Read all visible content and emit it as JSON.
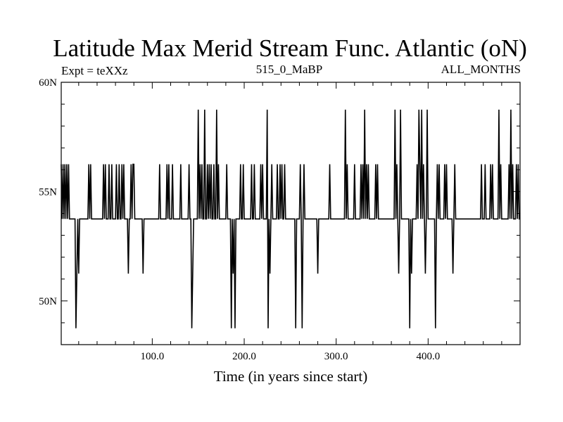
{
  "chart_data": {
    "type": "line",
    "title": "Latitude Max Merid Stream Func. Atlantic (oN)",
    "subtitle_left": "Expt = teXXz",
    "subtitle_center": "515_0_MaBP",
    "subtitle_right": "ALL_MONTHS",
    "xlabel": "Time (in years since start)",
    "ylabel": "",
    "xlim": [
      1,
      500
    ],
    "ylim": [
      48,
      60
    ],
    "x_ticks": [
      {
        "value": 100,
        "label": "100.0"
      },
      {
        "value": 200,
        "label": "200.0"
      },
      {
        "value": 300,
        "label": "300.0"
      },
      {
        "value": 400,
        "label": "400.0"
      }
    ],
    "y_ticks": [
      {
        "value": 50,
        "label": "50N"
      },
      {
        "value": 55,
        "label": "55N"
      },
      {
        "value": 60,
        "label": "60N"
      }
    ],
    "x_minor_step": 20,
    "y_minor_step": 1,
    "baseline": 53.75,
    "levels": {
      "high": 56.25,
      "top": 58.75,
      "low": 51.25,
      "bottom": 48.75
    },
    "events": [
      [
        1,
        56.25
      ],
      [
        2,
        53.75
      ],
      [
        3,
        56.25
      ],
      [
        4,
        53.75
      ],
      [
        5,
        56.25
      ],
      [
        6,
        53.75
      ],
      [
        7,
        56.25
      ],
      [
        8,
        53.75
      ],
      [
        9,
        56.25
      ],
      [
        17,
        48.75
      ],
      [
        18,
        51.25
      ],
      [
        19,
        53.75
      ],
      [
        20,
        51.25
      ],
      [
        31,
        56.25
      ],
      [
        33,
        56.25
      ],
      [
        47,
        56.25
      ],
      [
        49,
        56.25
      ],
      [
        53,
        56.25
      ],
      [
        56,
        56.25
      ],
      [
        61,
        56.25
      ],
      [
        64,
        56.25
      ],
      [
        67,
        56.25
      ],
      [
        69,
        56.25
      ],
      [
        74,
        51.25
      ],
      [
        77,
        56.25
      ],
      [
        79,
        56.25
      ],
      [
        80,
        56.25
      ],
      [
        90,
        51.25
      ],
      [
        108,
        56.25
      ],
      [
        116,
        56.25
      ],
      [
        118,
        56.25
      ],
      [
        122,
        56.25
      ],
      [
        131,
        56.25
      ],
      [
        140,
        56.25
      ],
      [
        143,
        48.75
      ],
      [
        144,
        51.25
      ],
      [
        150,
        58.75
      ],
      [
        152,
        56.25
      ],
      [
        154,
        56.25
      ],
      [
        157,
        58.75
      ],
      [
        160,
        56.25
      ],
      [
        162,
        56.25
      ],
      [
        164,
        56.25
      ],
      [
        167,
        56.25
      ],
      [
        170,
        58.75
      ],
      [
        172,
        56.25
      ],
      [
        181,
        56.25
      ],
      [
        186,
        48.75
      ],
      [
        188,
        51.25
      ],
      [
        190,
        48.75
      ],
      [
        196,
        56.25
      ],
      [
        199,
        56.25
      ],
      [
        208,
        56.25
      ],
      [
        211,
        56.25
      ],
      [
        218,
        56.25
      ],
      [
        220,
        56.25
      ],
      [
        225,
        58.75
      ],
      [
        226,
        48.75
      ],
      [
        228,
        51.25
      ],
      [
        230,
        56.25
      ],
      [
        236,
        56.25
      ],
      [
        239,
        56.25
      ],
      [
        241,
        56.25
      ],
      [
        244,
        56.25
      ],
      [
        256,
        48.75
      ],
      [
        261,
        56.25
      ],
      [
        263,
        48.75
      ],
      [
        265,
        56.25
      ],
      [
        280,
        51.25
      ],
      [
        293,
        56.25
      ],
      [
        310,
        58.75
      ],
      [
        312,
        56.25
      ],
      [
        320,
        56.25
      ],
      [
        327,
        56.25
      ],
      [
        329,
        56.25
      ],
      [
        331,
        58.75
      ],
      [
        333,
        56.25
      ],
      [
        335,
        56.25
      ],
      [
        343,
        56.25
      ],
      [
        345,
        56.25
      ],
      [
        364,
        58.75
      ],
      [
        366,
        56.25
      ],
      [
        368,
        51.25
      ],
      [
        370,
        58.75
      ],
      [
        380,
        48.75
      ],
      [
        382,
        51.25
      ],
      [
        388,
        56.25
      ],
      [
        390,
        58.75
      ],
      [
        391,
        56.25
      ],
      [
        393,
        58.75
      ],
      [
        395,
        56.25
      ],
      [
        397,
        51.25
      ],
      [
        399,
        58.75
      ],
      [
        408,
        48.75
      ],
      [
        410,
        56.25
      ],
      [
        412,
        56.25
      ],
      [
        418,
        56.25
      ],
      [
        420,
        56.25
      ],
      [
        427,
        51.25
      ],
      [
        429,
        56.25
      ],
      [
        458,
        56.25
      ],
      [
        462,
        56.25
      ],
      [
        468,
        56.25
      ],
      [
        470,
        56.25
      ],
      [
        477,
        58.75
      ],
      [
        479,
        56.25
      ],
      [
        488,
        56.25
      ],
      [
        490,
        58.75
      ],
      [
        492,
        56.25
      ],
      [
        496,
        56.25
      ],
      [
        498,
        56.25
      ]
    ]
  }
}
